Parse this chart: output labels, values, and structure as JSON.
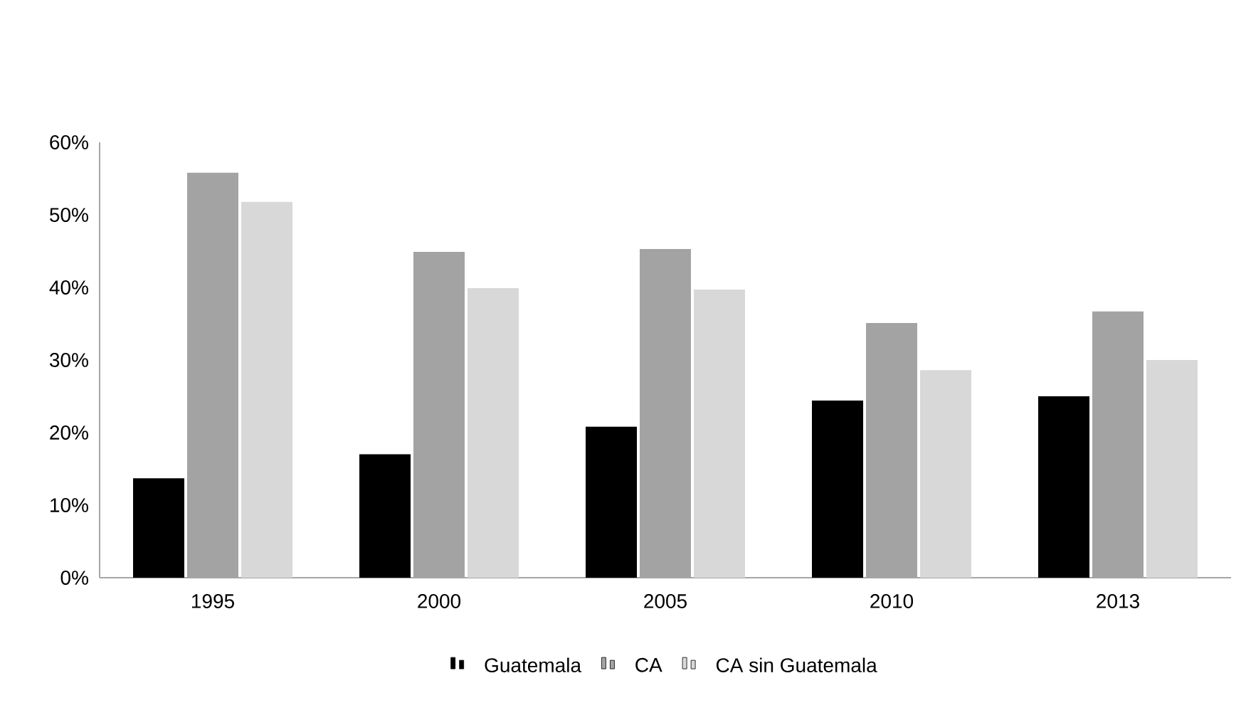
{
  "chart_data": {
    "type": "bar",
    "categories": [
      "1995",
      "2000",
      "2005",
      "2010",
      "2013"
    ],
    "series": [
      {
        "name": "Guatemala",
        "color": "#000000",
        "values": [
          13.7,
          17.0,
          20.8,
          24.4,
          25.0
        ]
      },
      {
        "name": "CA",
        "color": "#a3a3a3",
        "values": [
          55.8,
          44.9,
          45.3,
          35.1,
          36.7
        ]
      },
      {
        "name": "CA sin Guatemala",
        "color": "#d8d8d8",
        "values": [
          51.8,
          39.9,
          39.7,
          28.6,
          30.0
        ]
      }
    ],
    "ylim": [
      0,
      60
    ],
    "yticks": [
      {
        "value": 0,
        "label": "0%"
      },
      {
        "value": 10,
        "label": "10%"
      },
      {
        "value": 20,
        "label": "20%"
      },
      {
        "value": 30,
        "label": "30%"
      },
      {
        "value": 40,
        "label": "40%"
      },
      {
        "value": 50,
        "label": "50%"
      },
      {
        "value": 60,
        "label": "60%"
      }
    ],
    "grid": false,
    "legend": "bottom"
  }
}
